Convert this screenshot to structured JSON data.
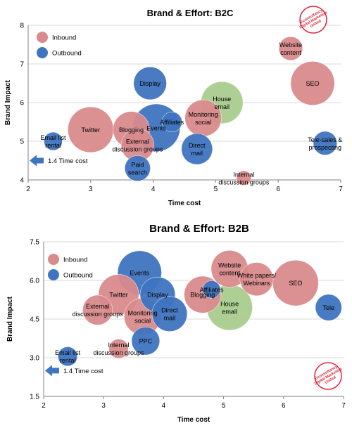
{
  "colors": {
    "inbound": "#d98a8c",
    "outbound": "#3f74c0",
    "mixed": "#a9cc8d",
    "grid": "#d9d9d9",
    "axis": "#808080",
    "arrow": "#3f74c0",
    "logo": "#e0253a"
  },
  "logo": {
    "text": "Econsultancy Digital Marketers United"
  },
  "chart_data": [
    {
      "type": "scatter",
      "title": "Brand & Effort: B2C",
      "xlabel": "Time cost",
      "ylabel": "Brand Impact",
      "xlim": [
        2,
        7
      ],
      "ylim": [
        4,
        8
      ],
      "xticks": [
        2,
        3,
        4,
        5,
        6,
        7
      ],
      "yticks": [
        4,
        5,
        6,
        7,
        8
      ],
      "grid": true,
      "legend": {
        "position": "top-left",
        "entries": [
          {
            "label": "Inbound",
            "color_key": "inbound"
          },
          {
            "label": "Outbound",
            "color_key": "outbound"
          }
        ]
      },
      "annotation": "1.4 Time cost",
      "points": [
        {
          "label": "Twitter",
          "x": 3.0,
          "y": 5.3,
          "size": 1.25,
          "group": "inbound"
        },
        {
          "label": "Blogging",
          "x": 3.65,
          "y": 5.3,
          "size": 1.0,
          "group": "inbound"
        },
        {
          "label": "External discussion groups",
          "x": 3.75,
          "y": 4.9,
          "size": 0.9,
          "group": "inbound"
        },
        {
          "label": "Events",
          "x": 4.05,
          "y": 5.35,
          "size": 1.3,
          "group": "outbound"
        },
        {
          "label": "Affiliates",
          "x": 4.3,
          "y": 5.5,
          "size": 0.55,
          "group": "outbound"
        },
        {
          "label": "Display",
          "x": 3.95,
          "y": 6.5,
          "size": 0.9,
          "group": "outbound"
        },
        {
          "label": "House email",
          "x": 5.1,
          "y": 6.0,
          "size": 1.15,
          "group": "mixed"
        },
        {
          "label": "Monitoring social",
          "x": 4.8,
          "y": 5.6,
          "size": 1.0,
          "group": "inbound"
        },
        {
          "label": "Direct mail",
          "x": 4.7,
          "y": 4.8,
          "size": 0.85,
          "group": "outbound"
        },
        {
          "label": "Paid search",
          "x": 3.75,
          "y": 4.3,
          "size": 0.7,
          "group": "outbound"
        },
        {
          "label": "Email list rental",
          "x": 2.4,
          "y": 5.0,
          "size": 0.5,
          "group": "outbound"
        },
        {
          "label": "Internal discussion groups",
          "x": 5.45,
          "y": 4.05,
          "size": 0.4,
          "group": "inbound"
        },
        {
          "label": "Website content",
          "x": 6.2,
          "y": 7.4,
          "size": 0.65,
          "group": "inbound"
        },
        {
          "label": "SEO",
          "x": 6.55,
          "y": 6.5,
          "size": 1.2,
          "group": "inbound"
        },
        {
          "label": "Tele-sales & prospecting",
          "x": 6.75,
          "y": 4.95,
          "size": 0.65,
          "group": "outbound"
        }
      ]
    },
    {
      "type": "scatter",
      "title": "Brand & Effort: B2B",
      "xlabel": "Time cost",
      "ylabel": "Brand Impact",
      "xlim": [
        2,
        7
      ],
      "ylim": [
        1.5,
        7.5
      ],
      "xticks": [
        2,
        3,
        4,
        5,
        6,
        7
      ],
      "yticks": [
        1.5,
        3.0,
        4.5,
        6.0,
        7.5
      ],
      "grid": true,
      "legend": {
        "position": "top-left",
        "entries": [
          {
            "label": "Inbound",
            "color_key": "inbound"
          },
          {
            "label": "Outbound",
            "color_key": "outbound"
          }
        ]
      },
      "annotation": "1.4 Time cost",
      "points": [
        {
          "label": "Events",
          "x": 3.6,
          "y": 6.3,
          "size": 1.25,
          "group": "outbound"
        },
        {
          "label": "Twitter",
          "x": 3.25,
          "y": 5.45,
          "size": 1.15,
          "group": "inbound"
        },
        {
          "label": "Display",
          "x": 3.9,
          "y": 5.45,
          "size": 1.0,
          "group": "outbound"
        },
        {
          "label": "Monitoring social",
          "x": 3.65,
          "y": 4.6,
          "size": 1.05,
          "group": "inbound"
        },
        {
          "label": "Direct mail",
          "x": 4.1,
          "y": 4.7,
          "size": 1.0,
          "group": "outbound"
        },
        {
          "label": "External discussion groups",
          "x": 2.9,
          "y": 4.85,
          "size": 0.85,
          "group": "inbound"
        },
        {
          "label": "PPC",
          "x": 3.7,
          "y": 3.65,
          "size": 0.8,
          "group": "outbound"
        },
        {
          "label": "Internal discussion groups",
          "x": 3.25,
          "y": 3.35,
          "size": 0.55,
          "group": "inbound"
        },
        {
          "label": "Email list rental",
          "x": 2.4,
          "y": 3.05,
          "size": 0.55,
          "group": "outbound"
        },
        {
          "label": "Blogging",
          "x": 4.65,
          "y": 5.45,
          "size": 1.05,
          "group": "inbound"
        },
        {
          "label": "Affiliates",
          "x": 4.8,
          "y": 5.65,
          "size": 0.5,
          "group": "outbound"
        },
        {
          "label": "Website content",
          "x": 5.1,
          "y": 6.45,
          "size": 1.05,
          "group": "inbound"
        },
        {
          "label": "House email",
          "x": 5.1,
          "y": 4.95,
          "size": 1.3,
          "group": "mixed"
        },
        {
          "label": "White papers/ Webinars",
          "x": 5.55,
          "y": 6.05,
          "size": 0.95,
          "group": "inbound"
        },
        {
          "label": "SEO",
          "x": 6.2,
          "y": 5.9,
          "size": 1.3,
          "group": "inbound"
        },
        {
          "label": "Tele",
          "x": 6.75,
          "y": 4.95,
          "size": 0.75,
          "group": "outbound"
        }
      ]
    }
  ]
}
